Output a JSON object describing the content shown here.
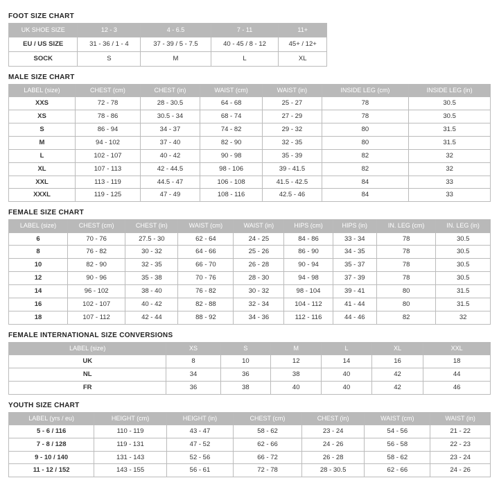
{
  "colors": {
    "header_bg": "#b9b9b9",
    "header_text": "#ffffff",
    "border": "#bbbbbb",
    "text": "#333333",
    "background": "#ffffff"
  },
  "foot": {
    "title": "FOOT SIZE CHART",
    "headers": [
      "UK SHOE SIZE",
      "12 - 3",
      "4 - 6.5",
      "7 - 11",
      "11+"
    ],
    "rows": [
      {
        "label": "EU / US SIZE",
        "cells": [
          "31 - 36 / 1 - 4",
          "37 - 39 / 5 - 7.5",
          "40 - 45  / 8 - 12",
          "45+ / 12+"
        ]
      },
      {
        "label": "SOCK",
        "cells": [
          "S",
          "M",
          "L",
          "XL"
        ]
      }
    ]
  },
  "male": {
    "title": "MALE SIZE CHART",
    "headers": [
      "LABEL (size)",
      "CHEST (cm)",
      "CHEST (in)",
      "WAIST (cm)",
      "WAIST (in)",
      "INSIDE LEG (cm)",
      "INSIDE LEG (in)"
    ],
    "rows": [
      {
        "label": "XXS",
        "cells": [
          "72 - 78",
          "28 - 30.5",
          "64 - 68",
          "25 - 27",
          "78",
          "30.5"
        ]
      },
      {
        "label": "XS",
        "cells": [
          "78 - 86",
          "30.5 - 34",
          "68 - 74",
          "27 - 29",
          "78",
          "30.5"
        ]
      },
      {
        "label": "S",
        "cells": [
          "86 - 94",
          "34 - 37",
          "74 - 82",
          "29 - 32",
          "80",
          "31.5"
        ]
      },
      {
        "label": "M",
        "cells": [
          "94 - 102",
          "37 - 40",
          "82 - 90",
          "32 - 35",
          "80",
          "31.5"
        ]
      },
      {
        "label": "L",
        "cells": [
          "102 - 107",
          "40 - 42",
          "90 - 98",
          "35 - 39",
          "82",
          "32"
        ]
      },
      {
        "label": "XL",
        "cells": [
          "107 - 113",
          "42 - 44.5",
          "98 - 106",
          "39 - 41.5",
          "82",
          "32"
        ]
      },
      {
        "label": "XXL",
        "cells": [
          "113 - 119",
          "44.5 - 47",
          "106 - 108",
          "41.5 - 42.5",
          "84",
          "33"
        ]
      },
      {
        "label": "XXXL",
        "cells": [
          "119 - 125",
          "47 - 49",
          "108 - 116",
          "42.5 - 46",
          "84",
          "33"
        ]
      }
    ]
  },
  "female": {
    "title": "FEMALE SIZE CHART",
    "headers": [
      "LABEL (size)",
      "CHEST (cm)",
      "CHEST (in)",
      "WAIST (cm)",
      "WAIST (in)",
      "HIPS (cm)",
      "HIPS (in)",
      "IN. LEG (cm)",
      "IN. LEG (in)"
    ],
    "rows": [
      {
        "label": "6",
        "cells": [
          "70 - 76",
          "27.5 - 30",
          "62 - 64",
          "24 - 25",
          "84 - 86",
          "33 - 34",
          "78",
          "30.5"
        ]
      },
      {
        "label": "8",
        "cells": [
          "76 - 82",
          "30 - 32",
          "64 - 66",
          "25 - 26",
          "86 - 90",
          "34 - 35",
          "78",
          "30.5"
        ]
      },
      {
        "label": "10",
        "cells": [
          "82 - 90",
          "32 - 35",
          "66 - 70",
          "26 - 28",
          "90 - 94",
          "35 - 37",
          "78",
          "30.5"
        ]
      },
      {
        "label": "12",
        "cells": [
          "90 - 96",
          "35 - 38",
          "70 - 76",
          "28 - 30",
          "94 - 98",
          "37 - 39",
          "78",
          "30.5"
        ]
      },
      {
        "label": "14",
        "cells": [
          "96 - 102",
          "38 - 40",
          "76 - 82",
          "30 - 32",
          "98 - 104",
          "39 - 41",
          "80",
          "31.5"
        ]
      },
      {
        "label": "16",
        "cells": [
          "102 - 107",
          "40 - 42",
          "82 - 88",
          "32 - 34",
          "104 - 112",
          "41 - 44",
          "80",
          "31.5"
        ]
      },
      {
        "label": "18",
        "cells": [
          "107 - 112",
          "42 - 44",
          "88 - 92",
          "34 - 36",
          "112 - 116",
          "44 - 46",
          "82",
          "32"
        ]
      }
    ]
  },
  "intl": {
    "title": "FEMALE INTERNATIONAL SIZE CONVERSIONS",
    "headers": [
      "LABEL (size)",
      "XS",
      "S",
      "M",
      "L",
      "XL",
      "XXL"
    ],
    "rows": [
      {
        "label": "UK",
        "cells": [
          "8",
          "10",
          "12",
          "14",
          "16",
          "18"
        ]
      },
      {
        "label": "NL",
        "cells": [
          "34",
          "36",
          "38",
          "40",
          "42",
          "44"
        ]
      },
      {
        "label": "FR",
        "cells": [
          "36",
          "38",
          "40",
          "40",
          "42",
          "46"
        ]
      }
    ]
  },
  "youth": {
    "title": "YOUTH SIZE CHART",
    "headers": [
      "LABEL (yrs / eu)",
      "HEIGHT (cm)",
      "HEIGHT (in)",
      "CHEST (cm)",
      "CHEST (in)",
      "WAIST (cm)",
      "WAIST (in)"
    ],
    "rows": [
      {
        "label": "5 - 6 / 116",
        "cells": [
          "110 - 119",
          "43 - 47",
          "58 - 62",
          "23 - 24",
          "54 - 56",
          "21 - 22"
        ]
      },
      {
        "label": "7 - 8 / 128",
        "cells": [
          "119 - 131",
          "47 - 52",
          "62 - 66",
          "24 - 26",
          "56 - 58",
          "22 - 23"
        ]
      },
      {
        "label": "9 - 10 / 140",
        "cells": [
          "131 - 143",
          "52 - 56",
          "66 - 72",
          "26 - 28",
          "58 - 62",
          "23 - 24"
        ]
      },
      {
        "label": "11 - 12 / 152",
        "cells": [
          "143 - 155",
          "56 - 61",
          "72 - 78",
          "28 - 30.5",
          "62 - 66",
          "24 - 26"
        ]
      }
    ]
  }
}
